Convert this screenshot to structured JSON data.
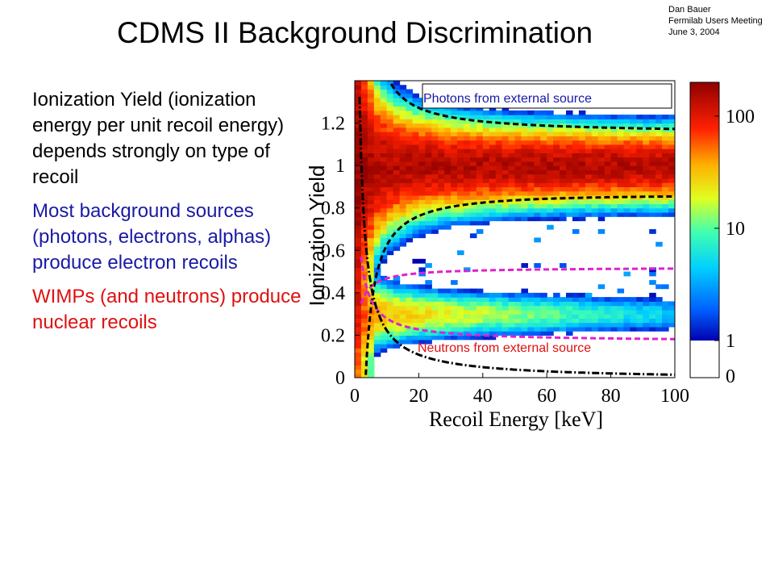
{
  "slide": {
    "title": "CDMS II Background Discrimination",
    "author": {
      "name": "Dan Bauer",
      "event": "Fermilab Users Meeting",
      "date": "June 3, 2004"
    },
    "bullets": [
      {
        "text": "Ionization Yield (ionization energy per unit recoil energy) depends strongly on type of recoil",
        "color": "#000000"
      },
      {
        "text": "Most background sources (photons, electrons, alphas) produce electron recoils",
        "color": "#1a1aa6"
      },
      {
        "text": "WIMPs (and neutrons) produce nuclear recoils",
        "color": "#e01010"
      }
    ]
  },
  "chart_data": {
    "type": "heatmap",
    "xlabel": "Recoil Energy [keV]",
    "ylabel": "Ionization Yield",
    "xlim": [
      0,
      100
    ],
    "ylim": [
      0,
      1.4
    ],
    "xticks": [
      0,
      20,
      40,
      60,
      80,
      100
    ],
    "yticks": [
      0,
      0.2,
      0.4,
      0.6,
      0.8,
      1,
      1.2
    ],
    "colorbar": {
      "scale": "log",
      "ticks": [
        0,
        1,
        10,
        100
      ]
    },
    "annotations": [
      {
        "text": "Photons from external source",
        "color": "#1a1aa6"
      },
      {
        "text": "Neutrons from external source",
        "color": "#e01010"
      }
    ],
    "bands": [
      {
        "name": "electron recoil band",
        "center_yield": 1.0,
        "half_width_high_energy": 0.15,
        "peak_counts": 150
      },
      {
        "name": "nuclear recoil band",
        "center_yield": 0.3,
        "half_width_high_energy": 0.08,
        "peak_counts": 40
      }
    ],
    "boundaries": [
      {
        "kind": "electron-recoil acceptance",
        "style": "black dashed",
        "high_energy_limits": [
          0.85,
          1.15
        ]
      },
      {
        "kind": "nuclear-recoil acceptance",
        "style": "magenta dashed",
        "high_energy_limits": [
          0.22,
          0.48
        ]
      },
      {
        "kind": "ionization threshold",
        "style": "black dash-dot"
      }
    ],
    "colors": {
      "electron_boundary": "#000000",
      "nuclear_boundary": "#e020d0",
      "threshold_line": "#000000",
      "photon_label": "#1a1aa6",
      "neutron_label": "#e01010"
    }
  }
}
